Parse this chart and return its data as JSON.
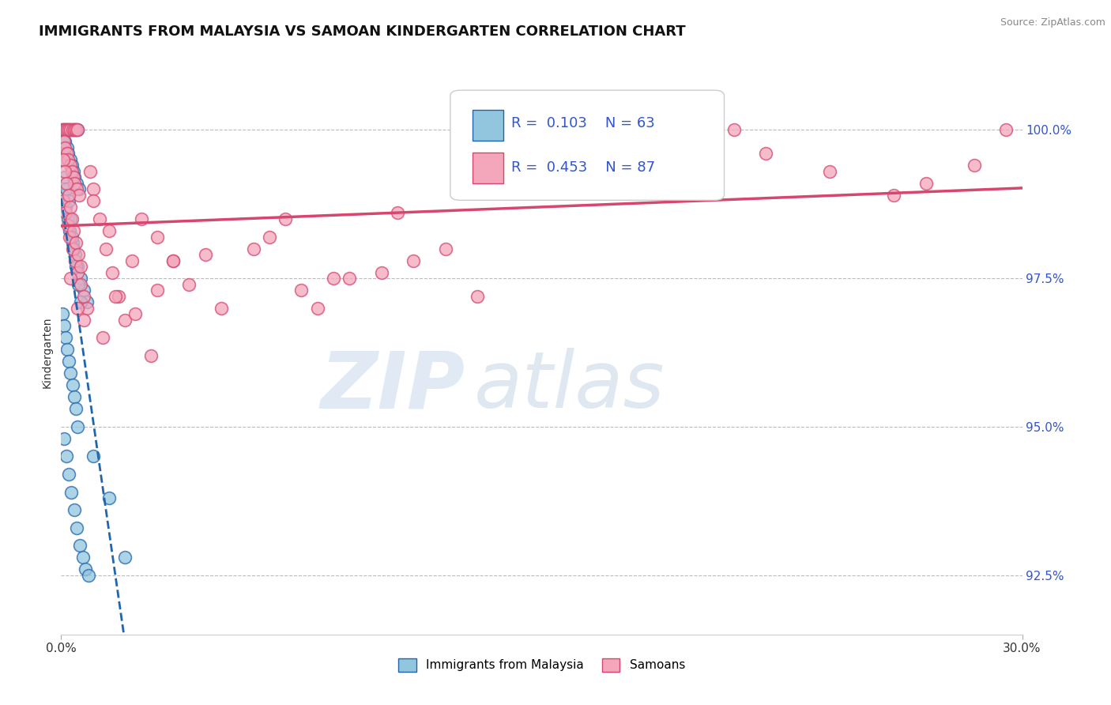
{
  "title": "IMMIGRANTS FROM MALAYSIA VS SAMOAN KINDERGARTEN CORRELATION CHART",
  "source_text": "Source: ZipAtlas.com",
  "ylabel": "Kindergarten",
  "xlim": [
    0.0,
    30.0
  ],
  "ylim": [
    91.5,
    101.0
  ],
  "ytick_labels": [
    "92.5%",
    "95.0%",
    "97.5%",
    "100.0%"
  ],
  "yticks": [
    92.5,
    95.0,
    97.5,
    100.0
  ],
  "legend_labels": [
    "Immigrants from Malaysia",
    "Samoans"
  ],
  "blue_color": "#92c5de",
  "pink_color": "#f4a6bb",
  "blue_edge": "#2166ac",
  "pink_edge": "#d6466f",
  "watermark_zip": "ZIP",
  "watermark_atlas": "atlas",
  "title_fontsize": 13,
  "axis_label_fontsize": 10,
  "tick_fontsize": 11,
  "legend_fontsize": 13,
  "blue_scatter_x": [
    0.05,
    0.1,
    0.15,
    0.2,
    0.25,
    0.3,
    0.35,
    0.4,
    0.45,
    0.5,
    0.08,
    0.12,
    0.18,
    0.22,
    0.28,
    0.33,
    0.38,
    0.42,
    0.48,
    0.55,
    0.07,
    0.14,
    0.21,
    0.27,
    0.36,
    0.44,
    0.52,
    0.6,
    0.7,
    0.8,
    0.05,
    0.1,
    0.15,
    0.2,
    0.25,
    0.3,
    0.35,
    0.4,
    0.45,
    0.5,
    0.06,
    0.11,
    0.17,
    0.23,
    0.29,
    0.34,
    0.39,
    0.46,
    0.53,
    0.62,
    0.08,
    0.16,
    0.24,
    0.32,
    0.41,
    0.49,
    0.58,
    0.68,
    0.75,
    0.85,
    1.0,
    1.5,
    2.0
  ],
  "blue_scatter_y": [
    100.0,
    100.0,
    100.0,
    100.0,
    100.0,
    100.0,
    100.0,
    100.0,
    100.0,
    100.0,
    99.8,
    99.8,
    99.7,
    99.6,
    99.5,
    99.4,
    99.3,
    99.2,
    99.1,
    99.0,
    98.9,
    98.7,
    98.5,
    98.3,
    98.1,
    97.9,
    97.7,
    97.5,
    97.3,
    97.1,
    96.9,
    96.7,
    96.5,
    96.3,
    96.1,
    95.9,
    95.7,
    95.5,
    95.3,
    95.0,
    99.5,
    99.2,
    99.0,
    98.8,
    98.5,
    98.2,
    98.0,
    97.7,
    97.4,
    97.1,
    94.8,
    94.5,
    94.2,
    93.9,
    93.6,
    93.3,
    93.0,
    92.8,
    92.6,
    92.5,
    94.5,
    93.8,
    92.8
  ],
  "pink_scatter_x": [
    0.05,
    0.1,
    0.15,
    0.2,
    0.25,
    0.3,
    0.35,
    0.4,
    0.45,
    0.5,
    0.08,
    0.12,
    0.18,
    0.22,
    0.28,
    0.33,
    0.38,
    0.42,
    0.48,
    0.55,
    0.07,
    0.14,
    0.21,
    0.27,
    0.36,
    0.44,
    0.52,
    0.6,
    0.7,
    0.8,
    0.9,
    1.0,
    1.2,
    1.4,
    1.6,
    1.8,
    2.0,
    2.5,
    3.0,
    3.5,
    4.0,
    5.0,
    6.0,
    7.0,
    7.5,
    8.0,
    9.0,
    10.0,
    11.0,
    12.0,
    0.06,
    0.11,
    0.17,
    0.23,
    0.29,
    0.34,
    0.39,
    0.46,
    0.53,
    0.62,
    1.5,
    2.2,
    3.0,
    4.5,
    6.5,
    8.5,
    10.5,
    13.0,
    15.0,
    17.0,
    19.0,
    21.0,
    22.0,
    24.0,
    26.0,
    27.0,
    28.5,
    29.5,
    0.3,
    0.5,
    0.7,
    1.0,
    1.3,
    1.7,
    2.3,
    2.8,
    3.5
  ],
  "pink_scatter_y": [
    100.0,
    100.0,
    100.0,
    100.0,
    100.0,
    100.0,
    100.0,
    100.0,
    100.0,
    100.0,
    99.8,
    99.7,
    99.6,
    99.5,
    99.4,
    99.3,
    99.2,
    99.1,
    99.0,
    98.9,
    98.8,
    98.6,
    98.4,
    98.2,
    98.0,
    97.8,
    97.6,
    97.4,
    97.2,
    97.0,
    99.3,
    99.0,
    98.5,
    98.0,
    97.6,
    97.2,
    96.8,
    98.5,
    98.2,
    97.8,
    97.4,
    97.0,
    98.0,
    98.5,
    97.3,
    97.0,
    97.5,
    97.6,
    97.8,
    98.0,
    99.5,
    99.3,
    99.1,
    98.9,
    98.7,
    98.5,
    98.3,
    98.1,
    97.9,
    97.7,
    98.3,
    97.8,
    97.3,
    97.9,
    98.2,
    97.5,
    98.6,
    97.2,
    99.2,
    99.5,
    99.8,
    100.0,
    99.6,
    99.3,
    98.9,
    99.1,
    99.4,
    100.0,
    97.5,
    97.0,
    96.8,
    98.8,
    96.5,
    97.2,
    96.9,
    96.2,
    97.8
  ],
  "trend_blue_x0": 0.0,
  "trend_blue_x1": 30.0,
  "trend_pink_x0": 0.0,
  "trend_pink_x1": 30.0
}
